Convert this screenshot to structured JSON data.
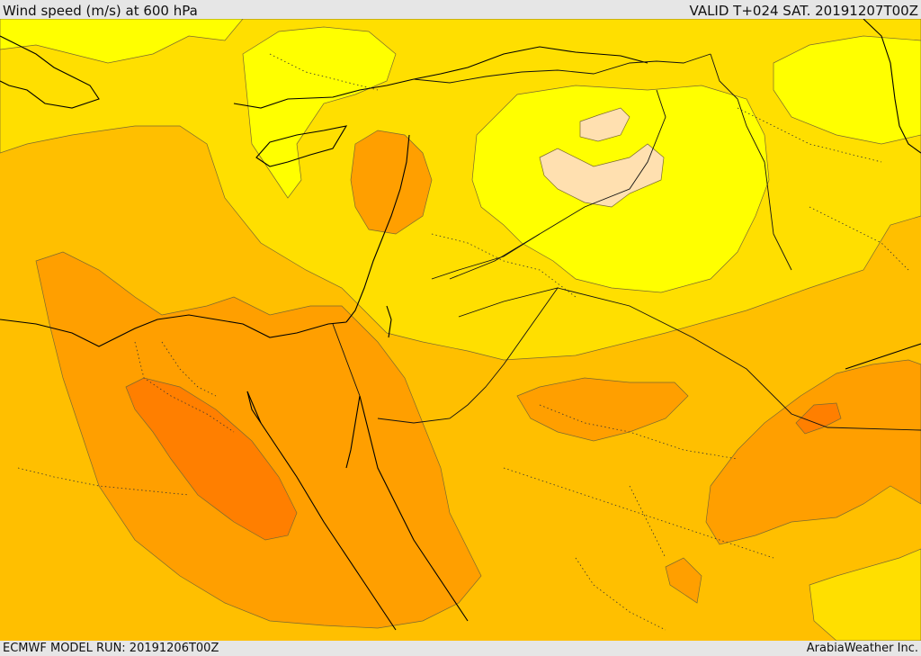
{
  "header": {
    "title": "Wind speed (m/s) at 600 hPa",
    "valid": "VALID T+024 SAT. 20191207T00Z"
  },
  "footer": {
    "model_run": "ECMWF MODEL RUN: 20191206T00Z",
    "credit": "ArabiaWeather Inc."
  },
  "colors": {
    "level_1": "#ffff00",
    "level_2": "#ffdf00",
    "level_3": "#ffbf00",
    "level_4": "#ff9f00",
    "level_5": "#ff7f00",
    "calm": "#ffe0b0",
    "coastline": "#000000",
    "border": "#222222"
  }
}
